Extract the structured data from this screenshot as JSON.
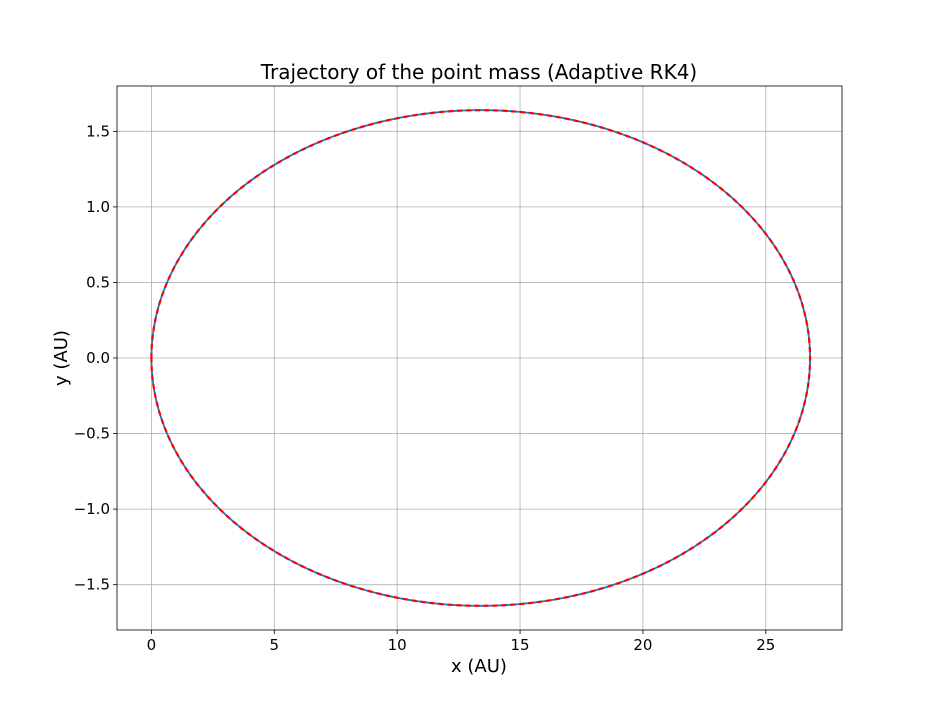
{
  "chart_data": {
    "type": "line",
    "title": "Trajectory of the point mass (Adaptive RK4)",
    "xlabel": "x (AU)",
    "ylabel": "y (AU)",
    "xlim": [
      -1.4,
      28.1
    ],
    "ylim": [
      -1.8,
      1.8
    ],
    "x_ticks": [
      0,
      5,
      10,
      15,
      20,
      25
    ],
    "x_tick_labels": [
      "0",
      "5",
      "10",
      "15",
      "20",
      "25"
    ],
    "y_ticks": [
      -1.5,
      -1.0,
      -0.5,
      0.0,
      0.5,
      1.0,
      1.5
    ],
    "y_tick_labels": [
      "−1.5",
      "−1.0",
      "−0.5",
      "0.0",
      "0.5",
      "1.0",
      "1.5"
    ],
    "grid": true,
    "legend": "none",
    "orbit": {
      "shape": "ellipse",
      "center_x": 13.4,
      "center_y": 0.0,
      "semi_major_x": 13.4,
      "semi_minor_y": 1.64,
      "x_min": 0.0,
      "x_max": 26.8
    },
    "series": [
      {
        "style": "solid",
        "color": "#1f77b4",
        "x": [
          0.0,
          0.06,
          0.26,
          0.59,
          1.04,
          1.62,
          2.32,
          3.12,
          4.03,
          5.04,
          6.14,
          7.31,
          8.55,
          9.84,
          11.18,
          12.56,
          13.95,
          15.35,
          16.73,
          18.08,
          19.38,
          20.61,
          21.77,
          22.84,
          23.8,
          24.65,
          25.38,
          25.97,
          26.41,
          26.7,
          26.8
        ],
        "y": [
          0.0,
          0.17,
          0.34,
          0.51,
          0.67,
          0.82,
          0.96,
          1.1,
          1.22,
          1.33,
          1.42,
          1.5,
          1.56,
          1.6,
          1.63,
          1.64,
          1.64,
          1.62,
          1.58,
          1.53,
          1.46,
          1.38,
          1.28,
          1.16,
          1.03,
          0.89,
          0.74,
          0.58,
          0.42,
          0.25,
          0.0
        ]
      },
      {
        "style": "dashed",
        "color": "#ff0000",
        "x": [
          0.0,
          0.06,
          0.26,
          0.59,
          1.04,
          1.62,
          2.32,
          3.12,
          4.03,
          5.04,
          6.14,
          7.31,
          8.55,
          9.84,
          11.18,
          12.56,
          13.95,
          15.35,
          16.73,
          18.08,
          19.38,
          20.61,
          21.77,
          22.84,
          23.8,
          24.65,
          25.38,
          25.97,
          26.41,
          26.7,
          26.8
        ],
        "y": [
          0.0,
          0.17,
          0.34,
          0.51,
          0.67,
          0.82,
          0.96,
          1.1,
          1.22,
          1.33,
          1.42,
          1.5,
          1.56,
          1.6,
          1.63,
          1.64,
          1.64,
          1.62,
          1.58,
          1.53,
          1.46,
          1.38,
          1.28,
          1.16,
          1.03,
          0.89,
          0.74,
          0.58,
          0.42,
          0.25,
          0.0
        ]
      }
    ]
  }
}
